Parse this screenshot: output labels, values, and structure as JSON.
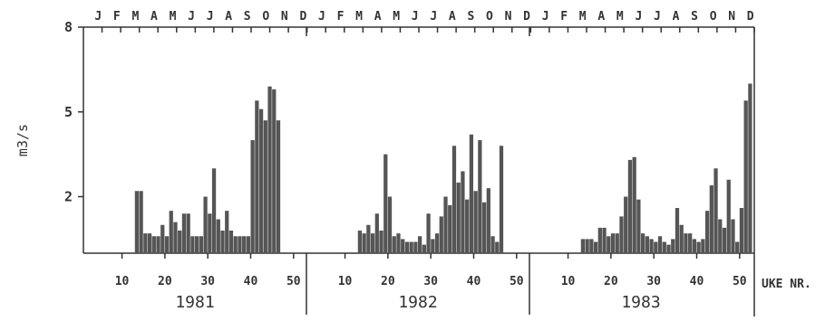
{
  "chart_data": {
    "type": "bar",
    "ylabel": "m3/s",
    "xlabel": "UKE NR.",
    "ylim": [
      0,
      8
    ],
    "yticks": [
      2,
      5,
      8
    ],
    "month_labels": [
      "J",
      "F",
      "M",
      "A",
      "M",
      "J",
      "J",
      "A",
      "S",
      "O",
      "N",
      "D",
      "J",
      "F",
      "M",
      "A",
      "M",
      "J",
      "J",
      "A",
      "S",
      "O",
      "N",
      "D",
      "J",
      "F",
      "M",
      "A",
      "M",
      "J",
      "J",
      "A",
      "S",
      "O",
      "N",
      "D"
    ],
    "week_ticks": [
      "10",
      "20",
      "30",
      "40",
      "50"
    ],
    "years": [
      {
        "label": "1981",
        "start_week": 13,
        "values": [
          2.2,
          2.2,
          0.7,
          0.7,
          0.6,
          0.6,
          1.0,
          0.6,
          1.5,
          1.1,
          0.8,
          1.4,
          1.4,
          0.6,
          0.6,
          0.6,
          2.0,
          1.4,
          3.0,
          1.2,
          0.8,
          1.5,
          0.8,
          0.6,
          0.6,
          0.6,
          0.6,
          4.0,
          5.4,
          5.1,
          4.7,
          5.9,
          5.8,
          4.7
        ]
      },
      {
        "label": "1982",
        "start_week": 13,
        "values": [
          0.8,
          0.7,
          1.0,
          0.7,
          1.4,
          0.8,
          3.5,
          2.0,
          0.6,
          0.7,
          0.5,
          0.4,
          0.4,
          0.4,
          0.6,
          0.3,
          1.4,
          0.5,
          0.7,
          1.3,
          2.0,
          1.7,
          3.8,
          2.5,
          2.9,
          1.9,
          4.2,
          2.2,
          4.0,
          1.8,
          2.3,
          0.6,
          0.4,
          3.8
        ]
      },
      {
        "label": "1983",
        "start_week": 13,
        "values": [
          0.5,
          0.5,
          0.5,
          0.4,
          0.9,
          0.9,
          0.6,
          0.7,
          0.7,
          1.3,
          2.0,
          3.3,
          3.4,
          1.9,
          0.7,
          0.6,
          0.5,
          0.4,
          0.6,
          0.4,
          0.3,
          0.5,
          1.6,
          1.0,
          0.7,
          0.7,
          0.5,
          0.4,
          0.5,
          1.5,
          2.4,
          3.0,
          1.2,
          0.9,
          2.6,
          1.2,
          0.4,
          1.6,
          5.4,
          6.0
        ]
      }
    ]
  }
}
